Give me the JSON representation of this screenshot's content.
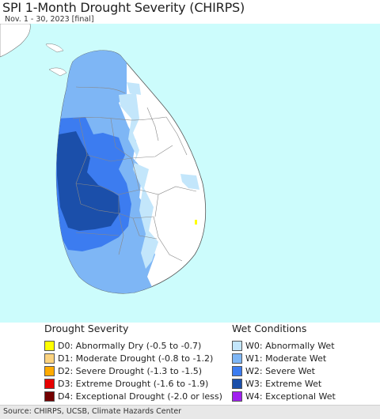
{
  "map": {
    "title": "SPI 1-Month Drought Severity (CHIRPS)",
    "subtitle": "Nov. 1 - 30, 2023 [final]",
    "colors": {
      "ocean": "#ccfcfc",
      "land": "#ffffff",
      "w0": "#c3e6fb",
      "w1": "#7eb6f5",
      "w2": "#3c7cf0",
      "w3": "#1b4faa",
      "d0": "#ffff00",
      "border": "#888888"
    }
  },
  "legend": {
    "drought": {
      "title": "Drought Severity",
      "items": [
        {
          "label": "D0: Abnormally Dry (-0.5 to -0.7)",
          "color": "#ffff00"
        },
        {
          "label": "D1: Moderate Drought (-0.8 to -1.2)",
          "color": "#fcd37f"
        },
        {
          "label": "D2: Severe Drought (-1.3 to -1.5)",
          "color": "#ffaa00"
        },
        {
          "label": "D3: Extreme Drought (-1.6 to -1.9)",
          "color": "#e60000"
        },
        {
          "label": "D4: Exceptional Drought (-2.0 or less)",
          "color": "#730000"
        }
      ]
    },
    "wet": {
      "title": "Wet Conditions",
      "items": [
        {
          "label": "W0: Abnormally Wet",
          "color": "#c3e6fb"
        },
        {
          "label": "W1: Moderate Wet",
          "color": "#7eb6f5"
        },
        {
          "label": "W2: Severe Wet",
          "color": "#3c7cf0"
        },
        {
          "label": "W3: Extreme Wet",
          "color": "#1b4faa"
        },
        {
          "label": "W4: Exceptional Wet",
          "color": "#a020f0"
        }
      ]
    }
  },
  "footer": {
    "source": "Source: CHIRPS, UCSB, Climate Hazards Center"
  }
}
